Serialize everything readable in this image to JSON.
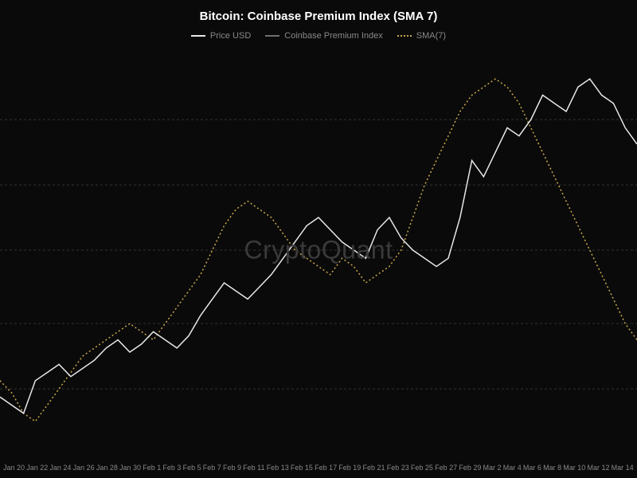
{
  "chart": {
    "type": "line",
    "title": "Bitcoin: Coinbase Premium Index (SMA 7)",
    "watermark": "CryptoQuant",
    "background_color": "#0a0a0a",
    "grid_color": "#333333",
    "title_color": "#ffffff",
    "title_fontsize": 15,
    "axis_label_color": "#888888",
    "axis_fontsize": 9,
    "legend": [
      {
        "label": "Price USD",
        "color": "#e8e8e8",
        "style": "solid"
      },
      {
        "label": "Coinbase Premium Index",
        "color": "#707070",
        "style": "solid"
      },
      {
        "label": "SMA(7)",
        "color": "#c9a84a",
        "style": "dotted"
      }
    ],
    "x_ticks": [
      "Jan 20",
      "Jan 22",
      "Jan 24",
      "Jan 26",
      "Jan 28",
      "Jan 30",
      "Feb 1",
      "Feb 3",
      "Feb 5",
      "Feb 7",
      "Feb 9",
      "Feb 11",
      "Feb 13",
      "Feb 15",
      "Feb 17",
      "Feb 19",
      "Feb 21",
      "Feb 23",
      "Feb 25",
      "Feb 27",
      "Feb 29",
      "Mar 2",
      "Mar 4",
      "Mar 6",
      "Mar 8",
      "Mar 10",
      "Mar 12",
      "Mar 14"
    ],
    "ylim": [
      0,
      100
    ],
    "gridlines_y": [
      16,
      32,
      50,
      66,
      82
    ],
    "series_price": {
      "color": "#e8e8e8",
      "line_width": 1.5,
      "style": "solid",
      "values": [
        14,
        12,
        10,
        18,
        20,
        22,
        19,
        21,
        23,
        26,
        28,
        25,
        27,
        30,
        28,
        26,
        29,
        34,
        38,
        42,
        40,
        38,
        41,
        44,
        48,
        52,
        56,
        58,
        55,
        52,
        50,
        48,
        55,
        58,
        53,
        50,
        48,
        46,
        48,
        58,
        72,
        68,
        74,
        80,
        78,
        82,
        88,
        86,
        84,
        90,
        92,
        88,
        86,
        80,
        76
      ]
    },
    "series_sma": {
      "color": "#c9a84a",
      "line_width": 1.5,
      "style": "dotted",
      "dash_pattern": "2 3",
      "values": [
        18,
        15,
        10,
        8,
        12,
        16,
        20,
        24,
        26,
        28,
        30,
        32,
        30,
        28,
        32,
        36,
        40,
        44,
        50,
        56,
        60,
        62,
        60,
        58,
        54,
        50,
        48,
        46,
        44,
        48,
        46,
        42,
        44,
        46,
        50,
        58,
        66,
        72,
        78,
        84,
        88,
        90,
        92,
        90,
        86,
        80,
        74,
        68,
        62,
        56,
        50,
        44,
        38,
        32,
        28
      ]
    }
  }
}
